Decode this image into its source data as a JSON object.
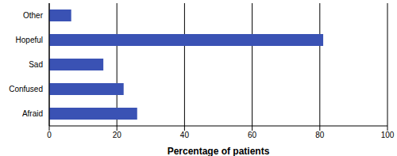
{
  "chart_data": {
    "type": "bar",
    "orientation": "horizontal",
    "categories": [
      "Other",
      "Hopeful",
      "Sad",
      "Confused",
      "Afraid"
    ],
    "values": [
      6.5,
      81,
      16,
      22,
      26
    ],
    "color": "#3a52b4",
    "xlabel": "Percentage of patients",
    "xlim": [
      0,
      100
    ],
    "xticks": [
      0,
      20,
      40,
      60,
      80,
      100
    ],
    "grid": true
  }
}
